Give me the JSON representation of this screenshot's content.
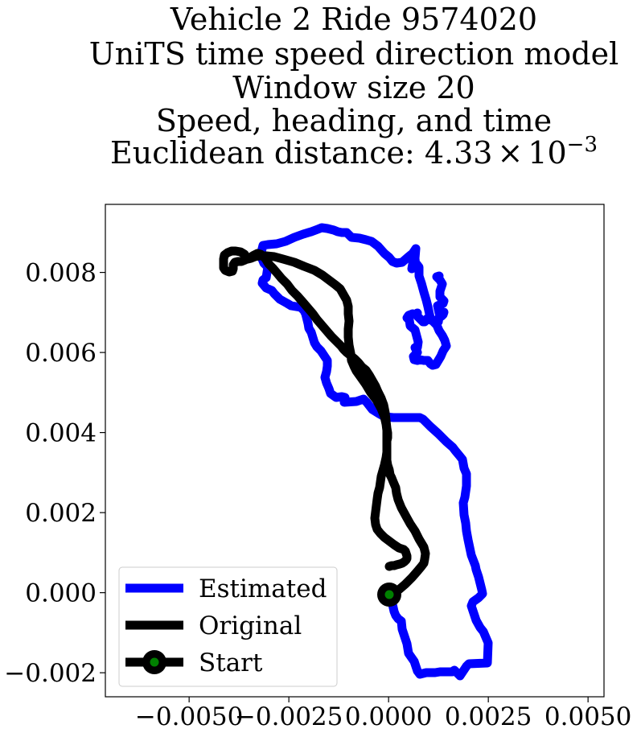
{
  "chart_data": {
    "type": "line",
    "title_lines": [
      "Vehicle 2 Ride 9574020",
      "UniTS time speed direction model",
      "Window size 20",
      "Speed, heading, and time"
    ],
    "title_distance_prefix": "Euclidean distance: 4.33",
    "title_distance_times": "×",
    "title_distance_base": "10",
    "title_distance_exp": "−3",
    "xlabel": "",
    "ylabel": "",
    "xlim": [
      -0.0071,
      0.0054
    ],
    "ylim": [
      -0.0026,
      0.0097
    ],
    "x_ticks": [
      -0.005,
      -0.0025,
      0.0,
      0.0025,
      0.005
    ],
    "x_tick_labels": [
      "−0.0050",
      "−0.0025",
      "0.0000",
      "0.0025",
      "0.0050"
    ],
    "y_ticks": [
      -0.002,
      0.0,
      0.002,
      0.004,
      0.006,
      0.008
    ],
    "y_tick_labels": [
      "−0.002",
      "0.000",
      "0.002",
      "0.004",
      "0.006",
      "0.008"
    ],
    "grid": false,
    "legend_position": "lower-left",
    "series": [
      {
        "name": "Estimated",
        "color": "#0000ff",
        "x": [
          0.0,
          0.0002,
          0.0003,
          0.0004,
          0.0006,
          0.0008,
          0.0011,
          0.0014,
          0.0017,
          0.0019,
          0.0019,
          0.0021,
          0.0022,
          0.0023,
          0.0024,
          0.0025,
          0.0025,
          0.0022,
          0.002,
          0.0018,
          0.0017,
          0.0015,
          0.0012,
          0.0008,
          0.0005,
          0.0004,
          0.0003,
          0.0002,
          0.0001,
          0.0,
          -0.0001,
          0.0
        ],
        "y": [
          0.0,
          -0.0005,
          -0.001,
          -0.0013,
          -0.0016,
          -0.0019,
          -0.002,
          -0.002,
          -0.002,
          -0.002,
          -0.0019,
          -0.0019,
          -0.0018,
          -0.0018,
          -0.0018,
          -0.0017,
          -0.0012,
          -0.001,
          -0.0008,
          -0.0006,
          -0.0004,
          -0.0001,
          0.0001,
          0.0,
          -0.0002,
          -0.0003,
          -0.0002,
          -0.0001,
          0.0,
          0.0,
          0.0,
          0.0
        ]
      },
      {
        "name": "Original",
        "color": "#000000",
        "x": [
          0.0,
          0.0003,
          0.0006,
          0.0009,
          0.001,
          0.001,
          0.0009,
          0.0007,
          0.0005,
          0.0003,
          0.0001,
          0.0
        ],
        "y": [
          0.0,
          0.0002,
          0.0004,
          0.0006,
          0.0008,
          0.001,
          0.0012,
          0.0014,
          0.0015,
          0.0016,
          0.0017,
          0.0018
        ]
      }
    ],
    "start_point": {
      "name": "Start",
      "x": 0.0,
      "y": 0.0,
      "marker_edge": "#000000",
      "marker_face": "#008000"
    }
  }
}
